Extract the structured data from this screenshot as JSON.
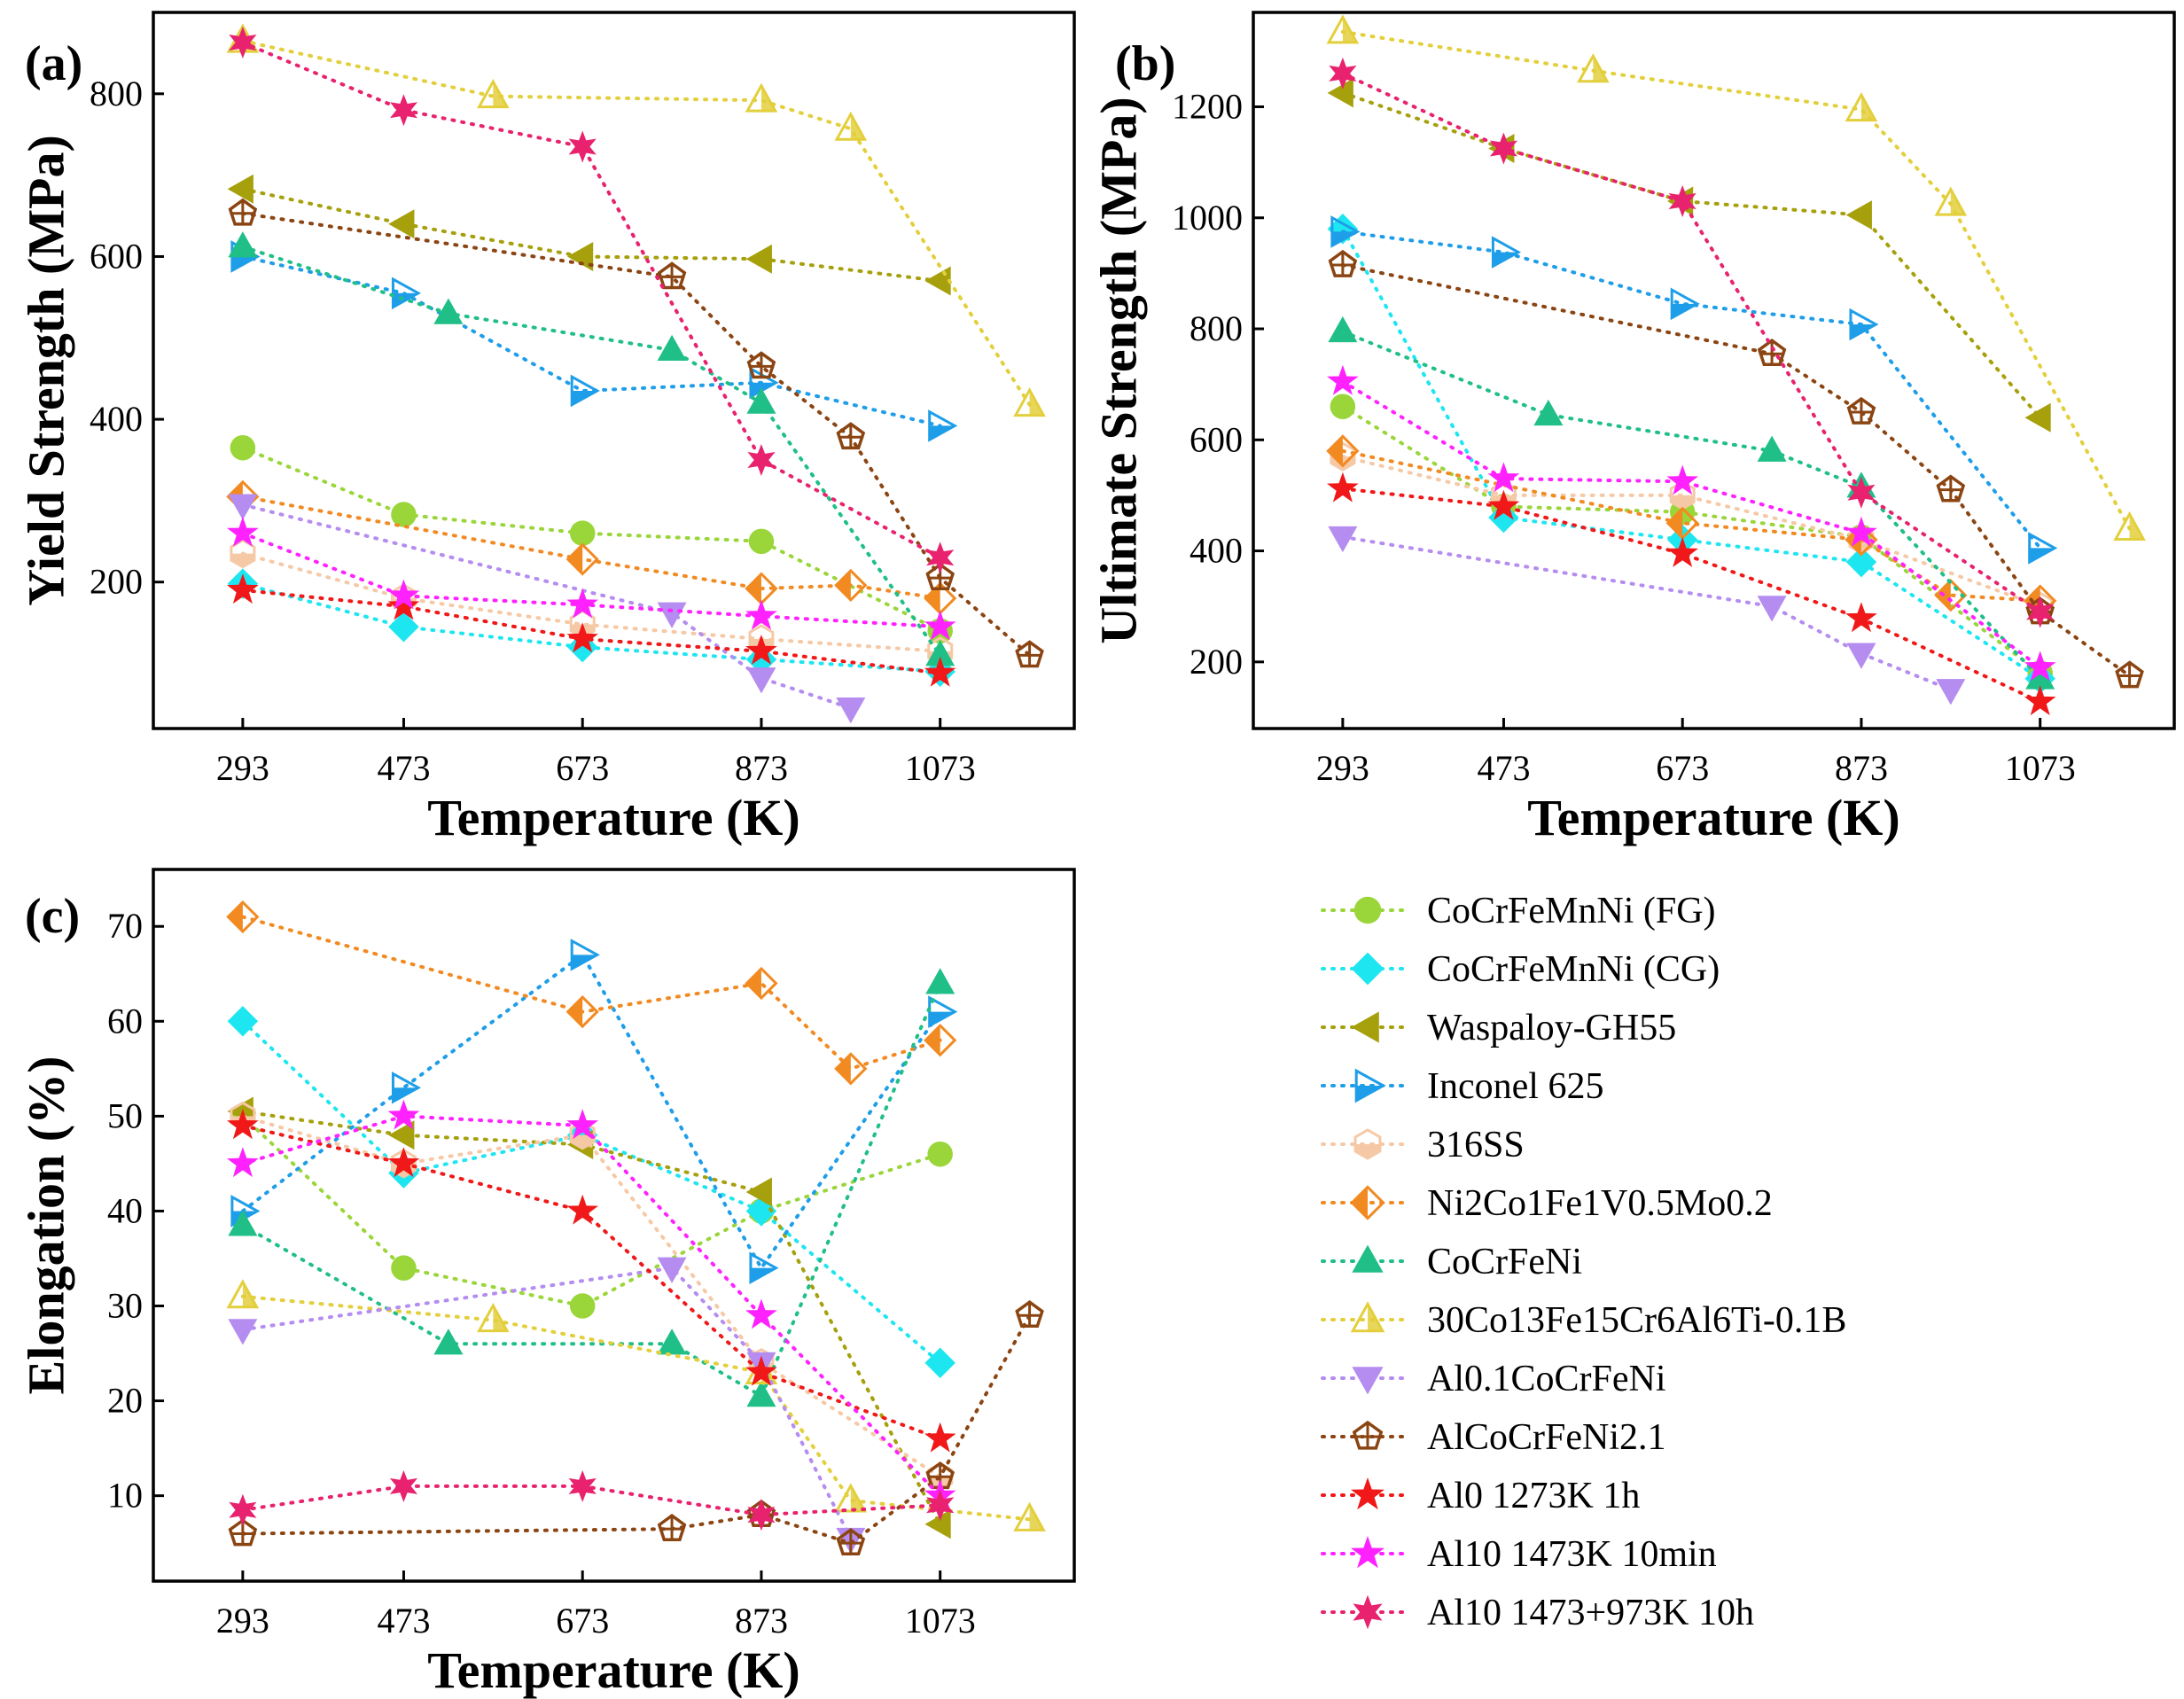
{
  "figure": {
    "legend": {
      "placement": "bottom-right",
      "entries": [
        "CoCrFeMnNi (FG)",
        "CoCrFeMnNi (CG)",
        "Waspaloy-GH55",
        "Inconel 625",
        "316SS",
        "Ni2Co1Fe1V0.5Mo0.2",
        "CoCrFeNi",
        "30Co13Fe15Cr6Al6Ti-0.1B",
        "Al0.1CoCrFeNi",
        "AlCoCrFeNi2.1",
        "Al0 1273K 1h",
        "Al10 1473K 10min",
        "Al10 1473+973K 10h"
      ]
    },
    "series_style": [
      {
        "name": "CoCrFeMnNi (FG)",
        "color": "#9ad63a",
        "marker": "circle"
      },
      {
        "name": "CoCrFeMnNi (CG)",
        "color": "#1ee6f0",
        "marker": "diamond"
      },
      {
        "name": "Waspaloy-GH55",
        "color": "#a6a00c",
        "marker": "tri-left"
      },
      {
        "name": "Inconel 625",
        "color": "#1e9ee8",
        "marker": "tri-right-half"
      },
      {
        "name": "316SS",
        "color": "#f6c9a6",
        "marker": "hexagon-half"
      },
      {
        "name": "Ni2Co1Fe1V0.5Mo0.2",
        "color": "#f28a22",
        "marker": "diamond-half"
      },
      {
        "name": "CoCrFeNi",
        "color": "#1fbf87",
        "marker": "tri-up"
      },
      {
        "name": "30Co13Fe15Cr6Al6Ti-0.1B",
        "color": "#e3cf3c",
        "marker": "tri-up-half"
      },
      {
        "name": "Al0.1CoCrFeNi",
        "color": "#b58cf0",
        "marker": "tri-down"
      },
      {
        "name": "AlCoCrFeNi2.1",
        "color": "#8b4513",
        "marker": "pentagon-cross"
      },
      {
        "name": "Al0 1273K 1h",
        "color": "#f01818",
        "marker": "star"
      },
      {
        "name": "Al10 1473K 10min",
        "color": "#ff22ff",
        "marker": "star"
      },
      {
        "name": "Al10 1473+973K 10h",
        "color": "#e8226e",
        "marker": "star6"
      }
    ]
  },
  "chart_data": [
    {
      "type": "scatter",
      "panel_label": "(a)",
      "xlabel": "Temperature (K)",
      "ylabel": "Yield Strength (MPa)",
      "xlim": [
        193,
        1223
      ],
      "ylim": [
        20,
        900
      ],
      "xticks": [
        293,
        473,
        673,
        873,
        1073
      ],
      "yticks": [
        200,
        400,
        600,
        800
      ],
      "series": [
        {
          "name": "CoCrFeMnNi (FG)",
          "x": [
            293,
            473,
            673,
            873,
            1073
          ],
          "y": [
            365,
            283,
            260,
            250,
            140
          ]
        },
        {
          "name": "CoCrFeMnNi (CG)",
          "x": [
            293,
            473,
            673,
            873,
            1073
          ],
          "y": [
            198,
            145,
            120,
            105,
            90
          ]
        },
        {
          "name": "Waspaloy-GH55",
          "x": [
            293,
            473,
            673,
            873,
            1073
          ],
          "y": [
            683,
            640,
            600,
            597,
            570
          ]
        },
        {
          "name": "Inconel 625",
          "x": [
            293,
            473,
            673,
            873,
            1073
          ],
          "y": [
            600,
            555,
            435,
            445,
            392
          ]
        },
        {
          "name": "316SS",
          "x": [
            293,
            473,
            673,
            873,
            1073
          ],
          "y": [
            235,
            180,
            148,
            130,
            115
          ]
        },
        {
          "name": "Ni2Co1Fe1V0.5Mo0.2",
          "x": [
            293,
            673,
            873,
            973,
            1073
          ],
          "y": [
            305,
            228,
            192,
            196,
            180
          ]
        },
        {
          "name": "CoCrFeNi",
          "x": [
            293,
            523,
            773,
            873,
            1073
          ],
          "y": [
            612,
            530,
            485,
            420,
            110
          ]
        },
        {
          "name": "30Co13Fe15Cr6Al6Ti-0.1B",
          "x": [
            293,
            573,
            873,
            973,
            1173
          ],
          "y": [
            865,
            797,
            792,
            757,
            418
          ]
        },
        {
          "name": "Al0.1CoCrFeNi",
          "x": [
            293,
            773,
            873,
            973
          ],
          "y": [
            295,
            162,
            82,
            45
          ]
        },
        {
          "name": "AlCoCrFeNi2.1",
          "x": [
            293,
            773,
            873,
            973,
            1073,
            1173
          ],
          "y": [
            653,
            575,
            465,
            378,
            205,
            110
          ]
        },
        {
          "name": "Al0 1273K 1h",
          "x": [
            293,
            473,
            673,
            873,
            1073
          ],
          "y": [
            190,
            170,
            130,
            115,
            88
          ]
        },
        {
          "name": "Al10 1473K 10min",
          "x": [
            293,
            473,
            673,
            873,
            1073
          ],
          "y": [
            260,
            183,
            172,
            158,
            145
          ]
        },
        {
          "name": "Al10 1473+973K 10h",
          "x": [
            293,
            473,
            673,
            873,
            1073
          ],
          "y": [
            863,
            780,
            735,
            350,
            230
          ]
        }
      ]
    },
    {
      "type": "scatter",
      "panel_label": "(b)",
      "xlabel": "Temperature (K)",
      "ylabel": "Ultimate Strength (MPa)",
      "xlim": [
        193,
        1223
      ],
      "ylim": [
        80,
        1370
      ],
      "xticks": [
        293,
        473,
        673,
        873,
        1073
      ],
      "yticks": [
        200,
        400,
        600,
        800,
        1000,
        1200
      ],
      "series": [
        {
          "name": "CoCrFeMnNi (FG)",
          "x": [
            293,
            473,
            673,
            873,
            1073
          ],
          "y": [
            660,
            480,
            470,
            425,
            180
          ]
        },
        {
          "name": "CoCrFeMnNi (CG)",
          "x": [
            293,
            473,
            673,
            873,
            1073
          ],
          "y": [
            980,
            460,
            420,
            380,
            170
          ]
        },
        {
          "name": "Waspaloy-GH55",
          "x": [
            293,
            473,
            673,
            873,
            1073
          ],
          "y": [
            1225,
            1125,
            1030,
            1005,
            640
          ]
        },
        {
          "name": "Inconel 625",
          "x": [
            293,
            473,
            673,
            873,
            1073
          ],
          "y": [
            975,
            938,
            845,
            808,
            405
          ]
        },
        {
          "name": "316SS",
          "x": [
            293,
            473,
            673,
            873,
            1073
          ],
          "y": [
            570,
            500,
            500,
            420,
            300
          ]
        },
        {
          "name": "Ni2Co1Fe1V0.5Mo0.2",
          "x": [
            293,
            673,
            873,
            973,
            1073
          ],
          "y": [
            580,
            450,
            420,
            320,
            310
          ]
        },
        {
          "name": "CoCrFeNi",
          "x": [
            293,
            523,
            773,
            873,
            1073
          ],
          "y": [
            795,
            645,
            580,
            515,
            170
          ]
        },
        {
          "name": "30Co13Fe15Cr6Al6Ti-0.1B",
          "x": [
            293,
            573,
            873,
            973,
            1173
          ],
          "y": [
            1335,
            1265,
            1195,
            1025,
            440
          ]
        },
        {
          "name": "Al0.1CoCrFeNi",
          "x": [
            293,
            773,
            873,
            973
          ],
          "y": [
            425,
            300,
            215,
            150
          ]
        },
        {
          "name": "AlCoCrFeNi2.1",
          "x": [
            293,
            773,
            873,
            973,
            1073,
            1173
          ],
          "y": [
            915,
            755,
            650,
            510,
            290,
            175
          ]
        },
        {
          "name": "Al0 1273K 1h",
          "x": [
            293,
            473,
            673,
            873,
            1073
          ],
          "y": [
            512,
            480,
            395,
            278,
            128
          ]
        },
        {
          "name": "Al10 1473K 10min",
          "x": [
            293,
            473,
            673,
            873,
            1073
          ],
          "y": [
            705,
            530,
            525,
            432,
            190
          ]
        },
        {
          "name": "Al10 1473+973K 10h",
          "x": [
            293,
            473,
            673,
            873,
            1073
          ],
          "y": [
            1260,
            1125,
            1030,
            505,
            290
          ]
        }
      ]
    },
    {
      "type": "scatter",
      "panel_label": "(c)",
      "xlabel": "Temperature (K)",
      "ylabel": "Elongation (%)",
      "xlim": [
        193,
        1223
      ],
      "ylim": [
        1,
        76
      ],
      "xticks": [
        293,
        473,
        673,
        873,
        1073
      ],
      "yticks": [
        10,
        20,
        30,
        40,
        50,
        60,
        70
      ],
      "series": [
        {
          "name": "CoCrFeMnNi (FG)",
          "x": [
            293,
            473,
            673,
            873,
            1073
          ],
          "y": [
            50,
            34,
            30,
            40,
            46
          ]
        },
        {
          "name": "CoCrFeMnNi (CG)",
          "x": [
            293,
            473,
            673,
            873,
            1073
          ],
          "y": [
            60,
            44,
            48,
            40,
            24
          ]
        },
        {
          "name": "Waspaloy-GH55",
          "x": [
            293,
            473,
            673,
            873,
            1073
          ],
          "y": [
            50.5,
            48,
            47,
            42,
            7
          ]
        },
        {
          "name": "Inconel 625",
          "x": [
            293,
            473,
            673,
            873,
            1073
          ],
          "y": [
            40,
            53,
            67,
            34,
            61
          ]
        },
        {
          "name": "316SS",
          "x": [
            293,
            473,
            673,
            873,
            1073
          ],
          "y": [
            50,
            45,
            48,
            24,
            12
          ]
        },
        {
          "name": "Ni2Co1Fe1V0.5Mo0.2",
          "x": [
            293,
            673,
            873,
            973,
            1073
          ],
          "y": [
            71,
            61,
            64,
            55,
            58
          ]
        },
        {
          "name": "CoCrFeNi",
          "x": [
            293,
            523,
            773,
            873,
            1073
          ],
          "y": [
            38.5,
            26,
            26,
            20.5,
            64
          ]
        },
        {
          "name": "30Co13Fe15Cr6Al6Ti-0.1B",
          "x": [
            293,
            573,
            873,
            973,
            1173
          ],
          "y": [
            31,
            28.5,
            23,
            9.5,
            7.5
          ]
        },
        {
          "name": "Al0.1CoCrFeNi",
          "x": [
            293,
            773,
            873,
            973
          ],
          "y": [
            27.5,
            34,
            24,
            5.5
          ]
        },
        {
          "name": "AlCoCrFeNi2.1",
          "x": [
            293,
            773,
            873,
            973,
            1073,
            1173
          ],
          "y": [
            6,
            6.5,
            8,
            5,
            12,
            29
          ]
        },
        {
          "name": "Al0 1273K 1h",
          "x": [
            293,
            473,
            673,
            873,
            1073
          ],
          "y": [
            49,
            45,
            40,
            23,
            16
          ]
        },
        {
          "name": "Al10 1473K 10min",
          "x": [
            293,
            473,
            673,
            873,
            1073
          ],
          "y": [
            45,
            50,
            49,
            29,
            10
          ]
        },
        {
          "name": "Al10 1473+973K 10h",
          "x": [
            293,
            473,
            673,
            873,
            1073
          ],
          "y": [
            8.5,
            11,
            11,
            8,
            9
          ]
        }
      ]
    }
  ]
}
